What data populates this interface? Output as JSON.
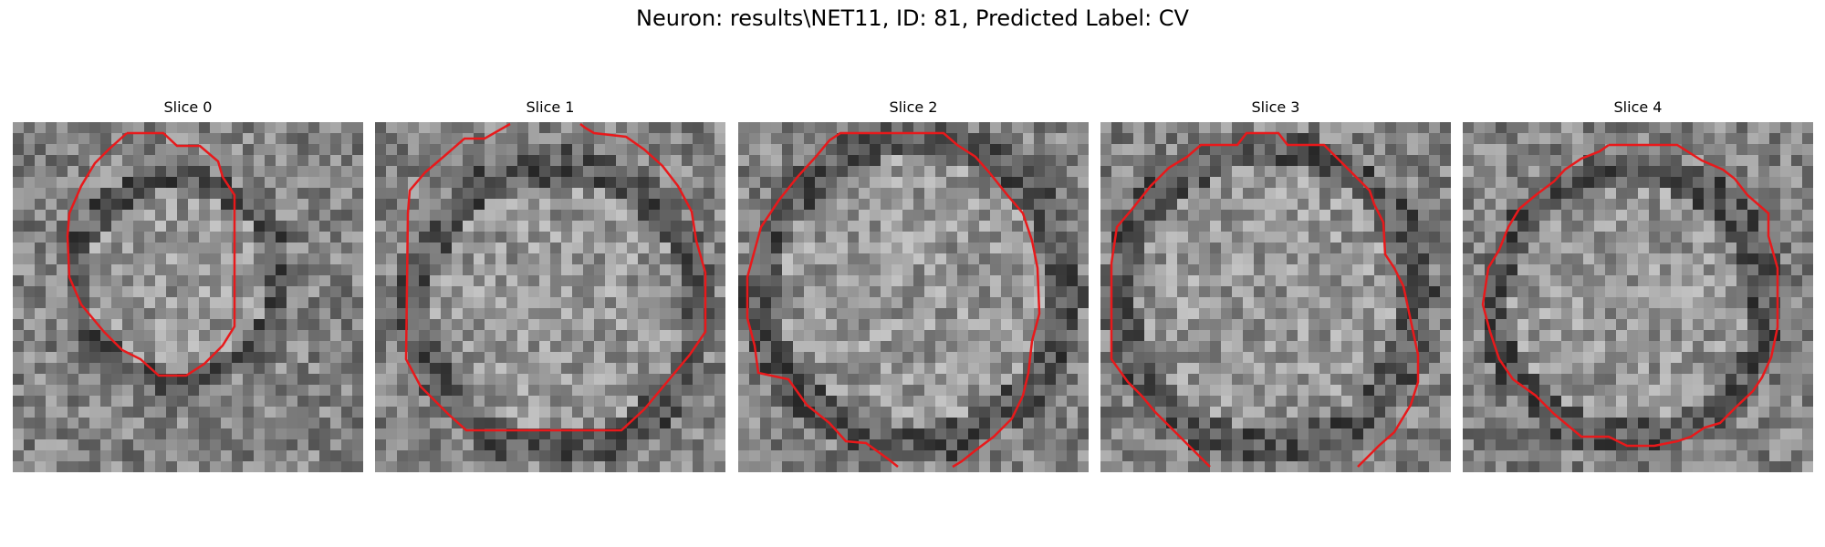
{
  "figure": {
    "title": "Neuron: results\\NET11, ID: 81, Predicted Label: CV"
  },
  "panels": [
    {
      "title": "Slice 0"
    },
    {
      "title": "Slice 1"
    },
    {
      "title": "Slice 2"
    },
    {
      "title": "Slice 3"
    },
    {
      "title": "Slice 4"
    }
  ],
  "colors": {
    "outline": "#e8191b",
    "image_colormap": "gray"
  }
}
